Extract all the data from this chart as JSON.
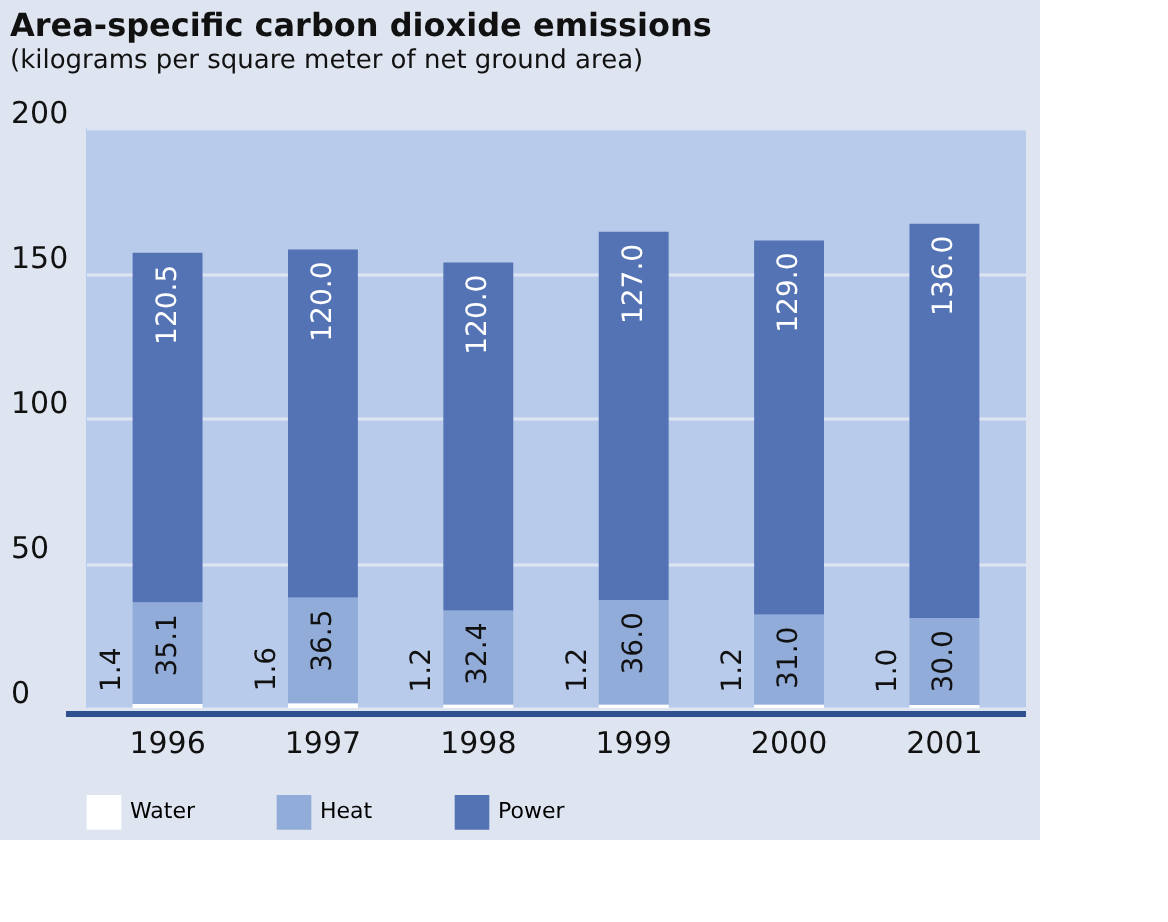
{
  "chart_data": {
    "type": "bar",
    "stacked": true,
    "title": "Area-specific carbon dioxide emissions",
    "subtitle": "(kilograms per square meter of net ground area)",
    "categories": [
      "1996",
      "1997",
      "1998",
      "1999",
      "2000",
      "2001"
    ],
    "series": [
      {
        "name": "Water",
        "color": "#ffffff",
        "values": [
          1.4,
          1.6,
          1.2,
          1.2,
          1.2,
          1.0
        ],
        "value_labels": [
          "1.4",
          "1.6",
          "1.2",
          "1.2",
          "1.2",
          "1.0"
        ]
      },
      {
        "name": "Heat",
        "color": "#92acd9",
        "values": [
          35.1,
          36.5,
          32.4,
          36.0,
          31.0,
          30.0
        ],
        "value_labels": [
          "35.1",
          "36.5",
          "32.4",
          "36.0",
          "31.0",
          "30.0"
        ]
      },
      {
        "name": "Power",
        "color": "#5373b4",
        "values": [
          120.5,
          120.0,
          120.0,
          127.0,
          129.0,
          136.0
        ],
        "value_labels": [
          "120.5",
          "120.0",
          "120.0",
          "127.0",
          "129.0",
          "136.0"
        ]
      }
    ],
    "ylim": [
      0,
      200
    ],
    "yticks": [
      0,
      50,
      100,
      150,
      200
    ],
    "grid": "y",
    "legend": "bottom"
  }
}
